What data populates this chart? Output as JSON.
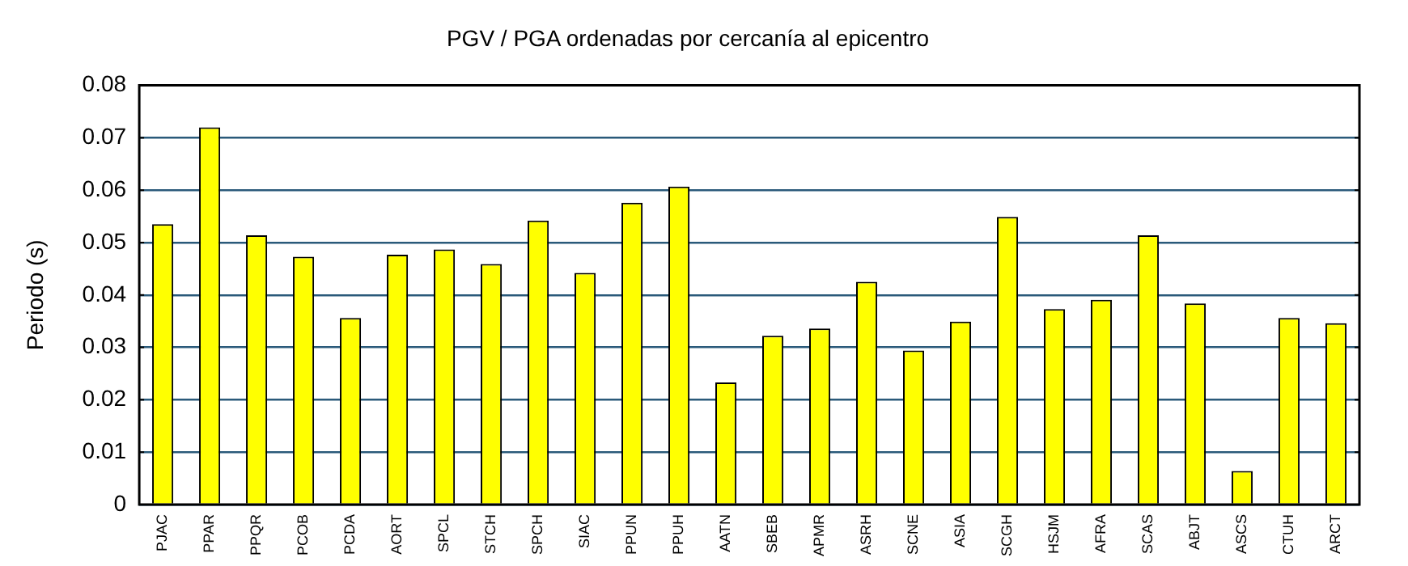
{
  "chart_data": {
    "type": "bar",
    "title": "PGV / PGA ordenadas por cercanía al epicentro",
    "ylabel": "Periodo (s)",
    "categories": [
      "PJAC",
      "PPAR",
      "PPQR",
      "PCOB",
      "PCDA",
      "AORT",
      "SPCL",
      "STCH",
      "SPCH",
      "SIAC",
      "PPUN",
      "PPUH",
      "AATN",
      "SBEB",
      "APMR",
      "ASRH",
      "SCNE",
      "ASIA",
      "SCGH",
      "HSJM",
      "AFRA",
      "SCAS",
      "ABJT",
      "ASCS",
      "CTUH",
      "ARCT"
    ],
    "values": [
      0.0535,
      0.072,
      0.0514,
      0.0473,
      0.0356,
      0.0477,
      0.0487,
      0.0459,
      0.0542,
      0.0442,
      0.0576,
      0.0607,
      0.0233,
      0.0322,
      0.0336,
      0.0425,
      0.0294,
      0.0349,
      0.0549,
      0.0373,
      0.0391,
      0.0514,
      0.0384,
      0.0064,
      0.0356,
      0.0346
    ],
    "color": "#ffff00",
    "ylim": [
      0,
      0.08
    ],
    "yticks": [
      0,
      0.01,
      0.02,
      0.03,
      0.04,
      0.05,
      0.06,
      0.07,
      0.08
    ],
    "grid": "y",
    "legend": false
  }
}
